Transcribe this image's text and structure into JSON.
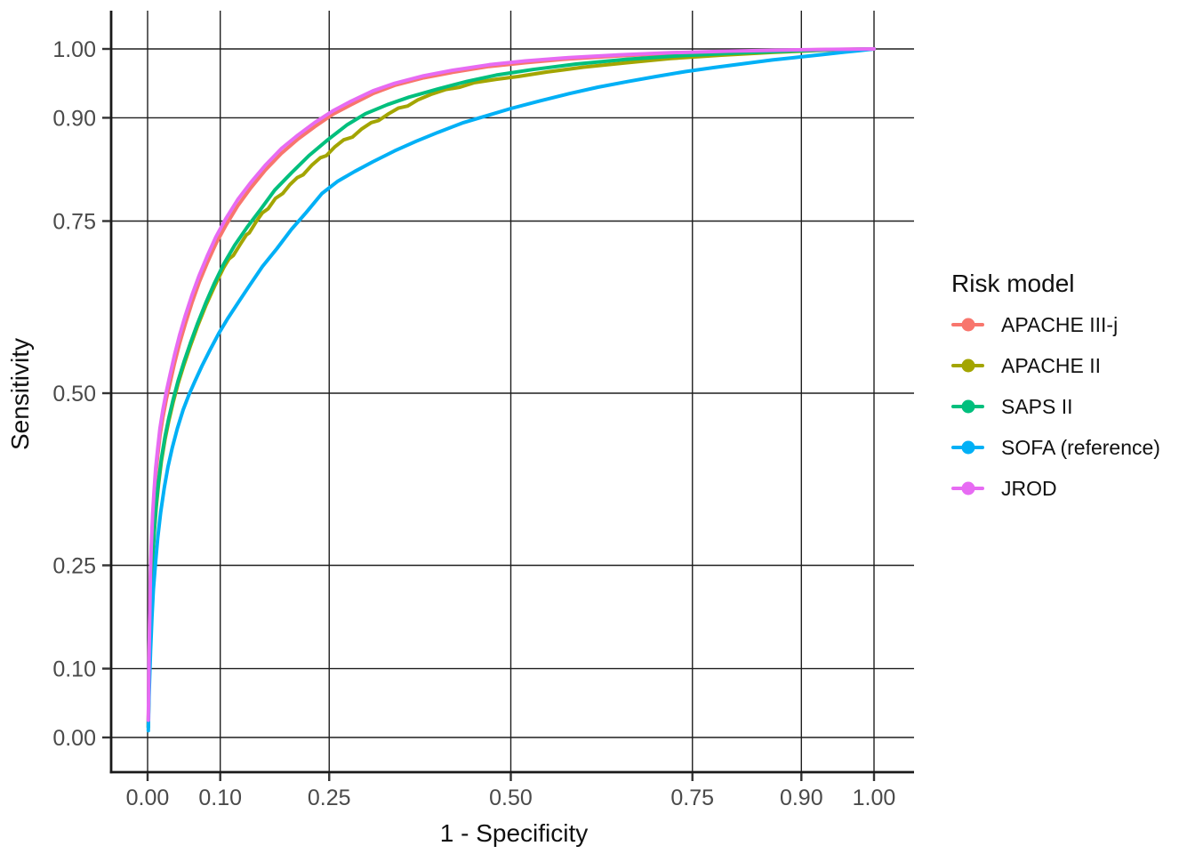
{
  "chart_data": {
    "type": "line",
    "subtype": "roc-curves",
    "title": "",
    "xlabel": "1 - Specificity",
    "ylabel": "Sensitivity",
    "xlim": [
      0,
      1
    ],
    "ylim": [
      0,
      1
    ],
    "grid": "on",
    "x_ticks": [
      0.0,
      0.1,
      0.25,
      0.5,
      0.75,
      0.9,
      1.0
    ],
    "x_tick_labels": [
      "0.00",
      "0.10",
      "0.25",
      "0.50",
      "0.75",
      "0.90",
      "1.00"
    ],
    "y_ticks": [
      0.0,
      0.1,
      0.25,
      0.5,
      0.75,
      0.9,
      1.0
    ],
    "y_tick_labels": [
      "0.00",
      "0.10",
      "0.25",
      "0.50",
      "0.75",
      "0.90",
      "1.00"
    ],
    "legend_position": "right",
    "legend_title": "Risk model",
    "series": [
      {
        "name": "APACHE III-j",
        "color": "#F8766D",
        "points": [
          [
            0.001,
            0.02
          ],
          [
            0.002,
            0.11
          ],
          [
            0.003,
            0.18
          ],
          [
            0.004,
            0.235
          ],
          [
            0.005,
            0.27
          ],
          [
            0.007,
            0.315
          ],
          [
            0.009,
            0.35
          ],
          [
            0.011,
            0.38
          ],
          [
            0.014,
            0.41
          ],
          [
            0.017,
            0.438
          ],
          [
            0.021,
            0.465
          ],
          [
            0.026,
            0.492
          ],
          [
            0.031,
            0.515
          ],
          [
            0.037,
            0.543
          ],
          [
            0.044,
            0.572
          ],
          [
            0.052,
            0.601
          ],
          [
            0.061,
            0.631
          ],
          [
            0.071,
            0.661
          ],
          [
            0.082,
            0.689
          ],
          [
            0.094,
            0.717
          ],
          [
            0.108,
            0.744
          ],
          [
            0.124,
            0.772
          ],
          [
            0.142,
            0.798
          ],
          [
            0.162,
            0.824
          ],
          [
            0.184,
            0.848
          ],
          [
            0.207,
            0.869
          ],
          [
            0.23,
            0.887
          ],
          [
            0.255,
            0.905
          ],
          [
            0.28,
            0.919
          ],
          [
            0.31,
            0.935
          ],
          [
            0.34,
            0.947
          ],
          [
            0.38,
            0.958
          ],
          [
            0.42,
            0.966
          ],
          [
            0.47,
            0.9745
          ],
          [
            0.52,
            0.98
          ],
          [
            0.58,
            0.9855
          ],
          [
            0.65,
            0.99
          ],
          [
            0.72,
            0.9935
          ],
          [
            0.8,
            0.996
          ],
          [
            0.88,
            0.998
          ],
          [
            0.94,
            0.9992
          ],
          [
            1,
            1
          ]
        ]
      },
      {
        "name": "APACHE II",
        "color": "#A3A500",
        "points": [
          [
            0.001,
            0.015
          ],
          [
            0.002,
            0.088
          ],
          [
            0.003,
            0.148
          ],
          [
            0.005,
            0.212
          ],
          [
            0.007,
            0.262
          ],
          [
            0.009,
            0.296
          ],
          [
            0.012,
            0.336
          ],
          [
            0.015,
            0.368
          ],
          [
            0.019,
            0.401
          ],
          [
            0.024,
            0.433
          ],
          [
            0.029,
            0.459
          ],
          [
            0.035,
            0.486
          ],
          [
            0.042,
            0.514
          ],
          [
            0.05,
            0.541
          ],
          [
            0.059,
            0.569
          ],
          [
            0.069,
            0.598
          ],
          [
            0.08,
            0.627
          ],
          [
            0.092,
            0.655
          ],
          [
            0.105,
            0.683
          ],
          [
            0.112,
            0.695
          ],
          [
            0.118,
            0.7
          ],
          [
            0.128,
            0.717
          ],
          [
            0.136,
            0.73
          ],
          [
            0.14,
            0.733
          ],
          [
            0.15,
            0.75
          ],
          [
            0.158,
            0.762
          ],
          [
            0.166,
            0.768
          ],
          [
            0.176,
            0.783
          ],
          [
            0.186,
            0.79
          ],
          [
            0.196,
            0.803
          ],
          [
            0.206,
            0.813
          ],
          [
            0.214,
            0.817
          ],
          [
            0.226,
            0.831
          ],
          [
            0.238,
            0.842
          ],
          [
            0.246,
            0.845
          ],
          [
            0.258,
            0.858
          ],
          [
            0.27,
            0.868
          ],
          [
            0.282,
            0.872
          ],
          [
            0.295,
            0.884
          ],
          [
            0.308,
            0.893
          ],
          [
            0.318,
            0.896
          ],
          [
            0.332,
            0.906
          ],
          [
            0.345,
            0.914
          ],
          [
            0.358,
            0.917
          ],
          [
            0.372,
            0.926
          ],
          [
            0.39,
            0.934
          ],
          [
            0.41,
            0.941
          ],
          [
            0.43,
            0.9445
          ],
          [
            0.45,
            0.951
          ],
          [
            0.48,
            0.956
          ],
          [
            0.51,
            0.96
          ],
          [
            0.55,
            0.9665
          ],
          [
            0.6,
            0.9735
          ],
          [
            0.66,
            0.98
          ],
          [
            0.72,
            0.986
          ],
          [
            0.79,
            0.991
          ],
          [
            0.86,
            0.995
          ],
          [
            0.93,
            0.998
          ],
          [
            1,
            1
          ]
        ]
      },
      {
        "name": "SAPS II",
        "color": "#00BF7D",
        "points": [
          [
            0.001,
            0.015
          ],
          [
            0.002,
            0.09
          ],
          [
            0.003,
            0.15
          ],
          [
            0.005,
            0.215
          ],
          [
            0.007,
            0.265
          ],
          [
            0.009,
            0.3
          ],
          [
            0.012,
            0.34
          ],
          [
            0.015,
            0.372
          ],
          [
            0.019,
            0.405
          ],
          [
            0.024,
            0.437
          ],
          [
            0.029,
            0.463
          ],
          [
            0.035,
            0.49
          ],
          [
            0.042,
            0.518
          ],
          [
            0.05,
            0.545
          ],
          [
            0.059,
            0.573
          ],
          [
            0.069,
            0.602
          ],
          [
            0.08,
            0.631
          ],
          [
            0.092,
            0.66
          ],
          [
            0.105,
            0.688
          ],
          [
            0.12,
            0.715
          ],
          [
            0.137,
            0.741
          ],
          [
            0.155,
            0.766
          ],
          [
            0.175,
            0.795
          ],
          [
            0.198,
            0.82
          ],
          [
            0.222,
            0.845
          ],
          [
            0.248,
            0.868
          ],
          [
            0.275,
            0.89
          ],
          [
            0.3,
            0.906
          ],
          [
            0.33,
            0.919
          ],
          [
            0.36,
            0.93
          ],
          [
            0.4,
            0.942
          ],
          [
            0.44,
            0.953
          ],
          [
            0.48,
            0.962
          ],
          [
            0.53,
            0.97
          ],
          [
            0.59,
            0.978
          ],
          [
            0.66,
            0.985
          ],
          [
            0.73,
            0.99
          ],
          [
            0.81,
            0.994
          ],
          [
            0.89,
            0.997
          ],
          [
            0.95,
            0.999
          ],
          [
            1,
            1
          ]
        ]
      },
      {
        "name": "SOFA (reference)",
        "color": "#00B0F6",
        "points": [
          [
            0.001,
            0.01
          ],
          [
            0.002,
            0.06
          ],
          [
            0.004,
            0.125
          ],
          [
            0.006,
            0.175
          ],
          [
            0.008,
            0.215
          ],
          [
            0.011,
            0.255
          ],
          [
            0.014,
            0.29
          ],
          [
            0.018,
            0.327
          ],
          [
            0.023,
            0.363
          ],
          [
            0.028,
            0.393
          ],
          [
            0.034,
            0.421
          ],
          [
            0.041,
            0.449
          ],
          [
            0.049,
            0.476
          ],
          [
            0.057,
            0.498
          ],
          [
            0.065,
            0.517
          ],
          [
            0.075,
            0.54
          ],
          [
            0.086,
            0.563
          ],
          [
            0.098,
            0.587
          ],
          [
            0.11,
            0.608
          ],
          [
            0.125,
            0.632
          ],
          [
            0.14,
            0.656
          ],
          [
            0.158,
            0.684
          ],
          [
            0.178,
            0.71
          ],
          [
            0.198,
            0.738
          ],
          [
            0.218,
            0.762
          ],
          [
            0.24,
            0.79
          ],
          [
            0.262,
            0.808
          ],
          [
            0.285,
            0.822
          ],
          [
            0.31,
            0.836
          ],
          [
            0.34,
            0.852
          ],
          [
            0.37,
            0.866
          ],
          [
            0.4,
            0.879
          ],
          [
            0.435,
            0.893
          ],
          [
            0.47,
            0.904
          ],
          [
            0.5,
            0.9135
          ],
          [
            0.54,
            0.9245
          ],
          [
            0.58,
            0.935
          ],
          [
            0.62,
            0.9445
          ],
          [
            0.66,
            0.9525
          ],
          [
            0.7,
            0.96
          ],
          [
            0.74,
            0.967
          ],
          [
            0.78,
            0.973
          ],
          [
            0.82,
            0.9785
          ],
          [
            0.86,
            0.984
          ],
          [
            0.9,
            0.9885
          ],
          [
            0.93,
            0.992
          ],
          [
            0.96,
            0.9955
          ],
          [
            0.98,
            0.9975
          ],
          [
            1,
            1
          ]
        ]
      },
      {
        "name": "JROD",
        "color": "#E76BF3",
        "points": [
          [
            0.001,
            0.025
          ],
          [
            0.002,
            0.115
          ],
          [
            0.003,
            0.185
          ],
          [
            0.004,
            0.243
          ],
          [
            0.005,
            0.278
          ],
          [
            0.007,
            0.325
          ],
          [
            0.009,
            0.36
          ],
          [
            0.011,
            0.39
          ],
          [
            0.014,
            0.42
          ],
          [
            0.017,
            0.449
          ],
          [
            0.021,
            0.476
          ],
          [
            0.026,
            0.503
          ],
          [
            0.031,
            0.527
          ],
          [
            0.037,
            0.555
          ],
          [
            0.044,
            0.584
          ],
          [
            0.052,
            0.613
          ],
          [
            0.061,
            0.642
          ],
          [
            0.071,
            0.671
          ],
          [
            0.082,
            0.699
          ],
          [
            0.094,
            0.727
          ],
          [
            0.108,
            0.754
          ],
          [
            0.124,
            0.781
          ],
          [
            0.142,
            0.806
          ],
          [
            0.162,
            0.831
          ],
          [
            0.184,
            0.855
          ],
          [
            0.207,
            0.875
          ],
          [
            0.23,
            0.893
          ],
          [
            0.255,
            0.91
          ],
          [
            0.28,
            0.924
          ],
          [
            0.31,
            0.939
          ],
          [
            0.34,
            0.95
          ],
          [
            0.38,
            0.961
          ],
          [
            0.42,
            0.969
          ],
          [
            0.47,
            0.977
          ],
          [
            0.52,
            0.9825
          ],
          [
            0.58,
            0.9875
          ],
          [
            0.65,
            0.9915
          ],
          [
            0.72,
            0.9945
          ],
          [
            0.8,
            0.9968
          ],
          [
            0.88,
            0.9985
          ],
          [
            0.94,
            0.9994
          ],
          [
            1,
            1
          ]
        ]
      }
    ],
    "draw_order": [
      "APACHE III-j",
      "APACHE II",
      "SAPS II",
      "SOFA (reference)",
      "JROD"
    ]
  },
  "style_colors": {
    "gridline": "#1f1f1f",
    "axis_line": "#1a1a1a",
    "tick_mark": "#333333",
    "tick_label": "#4a4a4a"
  }
}
